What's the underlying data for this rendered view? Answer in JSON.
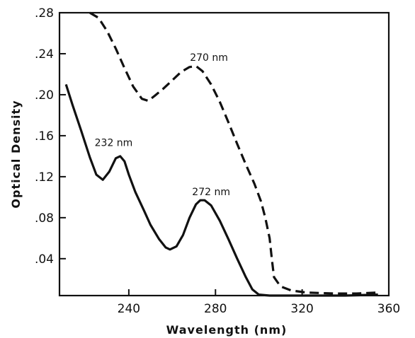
{
  "chart_data": {
    "type": "line",
    "title": "",
    "xlabel": "Wavelength (nm)",
    "ylabel": "Optical Density",
    "xlim": [
      208,
      360
    ],
    "ylim": [
      0.004,
      0.28
    ],
    "x_ticks": [
      240,
      280,
      320,
      360
    ],
    "x_tick_labels": [
      "240",
      "280",
      "320",
      "360"
    ],
    "y_ticks": [
      0.04,
      0.08,
      0.12,
      0.16,
      0.2,
      0.24,
      0.28
    ],
    "y_tick_labels": [
      ".04",
      ".08",
      ".12",
      ".16",
      ".20",
      ".24",
      ".28"
    ],
    "grid": false,
    "legend": "none",
    "series": [
      {
        "style": "solid",
        "color": "#111111",
        "points": [
          [
            211,
            0.21
          ],
          [
            214,
            0.19
          ],
          [
            218,
            0.165
          ],
          [
            222,
            0.139
          ],
          [
            225,
            0.122
          ],
          [
            228,
            0.117
          ],
          [
            231,
            0.125
          ],
          [
            234,
            0.138
          ],
          [
            236,
            0.14
          ],
          [
            238,
            0.135
          ],
          [
            240,
            0.122
          ],
          [
            243,
            0.105
          ],
          [
            247,
            0.087
          ],
          [
            250,
            0.073
          ],
          [
            254,
            0.059
          ],
          [
            257,
            0.051
          ],
          [
            259,
            0.049
          ],
          [
            262,
            0.052
          ],
          [
            265,
            0.063
          ],
          [
            268,
            0.08
          ],
          [
            271,
            0.093
          ],
          [
            273,
            0.097
          ],
          [
            275,
            0.097
          ],
          [
            278,
            0.092
          ],
          [
            282,
            0.077
          ],
          [
            286,
            0.059
          ],
          [
            290,
            0.04
          ],
          [
            294,
            0.022
          ],
          [
            297,
            0.01
          ],
          [
            300,
            0.005
          ],
          [
            305,
            0.004
          ],
          [
            320,
            0.004
          ],
          [
            340,
            0.004
          ],
          [
            355,
            0.005
          ]
        ]
      },
      {
        "style": "dashed",
        "color": "#111111",
        "points": [
          [
            222,
            0.28
          ],
          [
            226,
            0.275
          ],
          [
            230,
            0.262
          ],
          [
            234,
            0.245
          ],
          [
            238,
            0.226
          ],
          [
            242,
            0.208
          ],
          [
            246,
            0.196
          ],
          [
            249,
            0.194
          ],
          [
            252,
            0.199
          ],
          [
            256,
            0.206
          ],
          [
            260,
            0.214
          ],
          [
            264,
            0.222
          ],
          [
            268,
            0.227
          ],
          [
            271,
            0.228
          ],
          [
            274,
            0.223
          ],
          [
            278,
            0.21
          ],
          [
            282,
            0.193
          ],
          [
            286,
            0.173
          ],
          [
            290,
            0.152
          ],
          [
            294,
            0.132
          ],
          [
            298,
            0.113
          ],
          [
            301,
            0.096
          ],
          [
            303,
            0.08
          ],
          [
            305,
            0.06
          ],
          [
            306,
            0.04
          ],
          [
            307,
            0.022
          ],
          [
            310,
            0.013
          ],
          [
            315,
            0.009
          ],
          [
            322,
            0.007
          ],
          [
            335,
            0.006
          ],
          [
            345,
            0.006
          ],
          [
            355,
            0.007
          ]
        ]
      }
    ],
    "annotations": [
      {
        "text": "270 nm",
        "x": 277,
        "y": 0.233
      },
      {
        "text": "232 nm",
        "x": 233,
        "y": 0.15
      },
      {
        "text": "272 nm",
        "x": 278,
        "y": 0.102
      }
    ]
  }
}
